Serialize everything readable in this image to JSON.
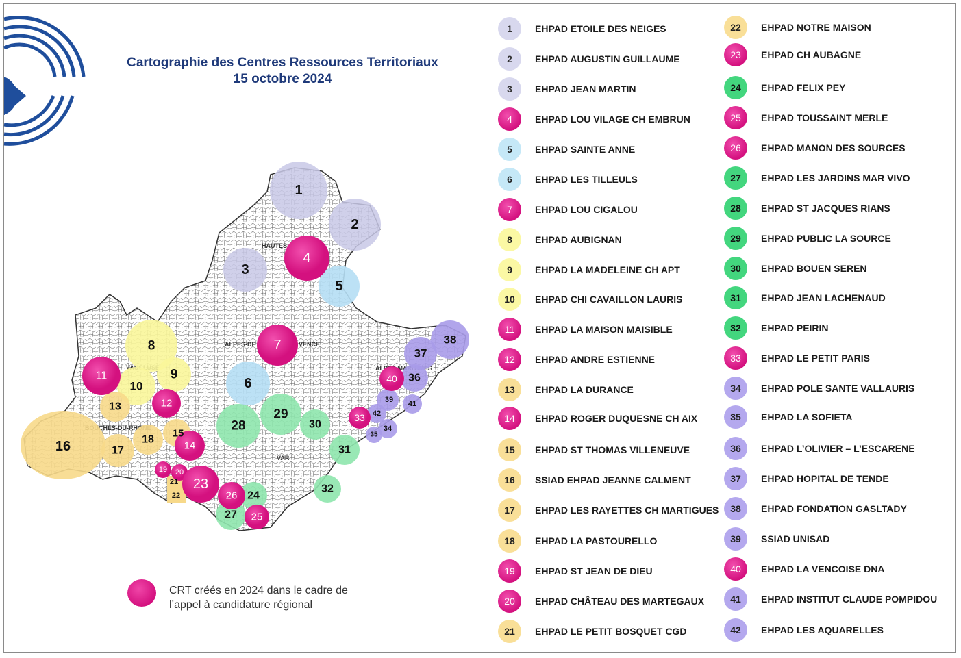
{
  "title": {
    "line1": "Cartographie des Centres Ressources Territoriaux",
    "line2": "15 octobre 2024"
  },
  "map_labels": {
    "hautes": "HAUTES",
    "alpes_de": "ALPES-DE",
    "vence": "VENCE",
    "vaucluse": "VAUCLUSE",
    "bouches_du_rhone": "BOUCHES-DU-RHONE",
    "var": "VAR",
    "alpes_maritimes": "ALPES MARITIMES"
  },
  "note": {
    "line1": "CRT créés en 2024 dans le cadre de",
    "line2": "l’appel à candidature régional"
  },
  "colors": {
    "lavender": "#d8d8ee",
    "pink": "#d4117f",
    "light_blue": "#c5e8f7",
    "yellow": "#fbf8a4",
    "orange": "#f9df98",
    "green": "#43d67e",
    "purple": "#b4a8ee",
    "title_blue": "#1f3a7a"
  },
  "legend": [
    {
      "num": "1",
      "label": "EHPAD ETOILE DES NEIGES",
      "color": "lavender"
    },
    {
      "num": "2",
      "label": "EHPAD AUGUSTIN GUILLAUME",
      "color": "lavender"
    },
    {
      "num": "3",
      "label": "EHPAD JEAN MARTIN",
      "color": "lavender"
    },
    {
      "num": "4",
      "label": "EHPAD LOU VILAGE CH EMBRUN",
      "color": "pink"
    },
    {
      "num": "5",
      "label": "EHPAD SAINTE ANNE",
      "color": "light_blue"
    },
    {
      "num": "6",
      "label": "EHPAD LES TILLEULS",
      "color": "light_blue"
    },
    {
      "num": "7",
      "label": "EHPAD LOU CIGALOU",
      "color": "pink"
    },
    {
      "num": "8",
      "label": "EHPAD AUBIGNAN",
      "color": "yellow"
    },
    {
      "num": "9",
      "label": "EHPAD LA MADELEINE CH APT",
      "color": "yellow"
    },
    {
      "num": "10",
      "label": "EHPAD CHI CAVAILLON LAURIS",
      "color": "yellow"
    },
    {
      "num": "11",
      "label": "EHPAD LA MAISON MAISIBLE",
      "color": "pink"
    },
    {
      "num": "12",
      "label": "EHPAD ANDRE ESTIENNE",
      "color": "pink"
    },
    {
      "num": "13",
      "label": "EHPAD LA DURANCE",
      "color": "orange"
    },
    {
      "num": "14",
      "label": "EHPAD ROGER DUQUESNE CH AIX",
      "color": "pink"
    },
    {
      "num": "15",
      "label": "EHPAD ST THOMAS VILLENEUVE",
      "color": "orange"
    },
    {
      "num": "16",
      "label": "SSIAD EHPAD JEANNE CALMENT",
      "color": "orange"
    },
    {
      "num": "17",
      "label": "EHPAD LES RAYETTES CH MARTIGUES",
      "color": "orange"
    },
    {
      "num": "18",
      "label": "EHPAD LA PASTOURELLO",
      "color": "orange"
    },
    {
      "num": "19",
      "label": "EHPAD ST JEAN DE DIEU",
      "color": "pink"
    },
    {
      "num": "20",
      "label": "EHPAD CHÂTEAU DES MARTEGAUX",
      "color": "pink"
    },
    {
      "num": "21",
      "label": "EHPAD LE PETIT BOSQUET CGD",
      "color": "orange"
    },
    {
      "num": "22",
      "label": "EHPAD NOTRE MAISON",
      "color": "orange"
    },
    {
      "num": "23",
      "label": "EHPAD CH AUBAGNE",
      "color": "pink"
    },
    {
      "num": "24",
      "label": "EHPAD FELIX PEY",
      "color": "green"
    },
    {
      "num": "25",
      "label": "EHPAD TOUSSAINT MERLE",
      "color": "pink"
    },
    {
      "num": "26",
      "label": "EHPAD MANON DES SOURCES",
      "color": "pink"
    },
    {
      "num": "27",
      "label": "EHPAD LES JARDINS MAR VIVO",
      "color": "green"
    },
    {
      "num": "28",
      "label": "EHPAD ST JACQUES RIANS",
      "color": "green"
    },
    {
      "num": "29",
      "label": "EHPAD PUBLIC LA SOURCE",
      "color": "green"
    },
    {
      "num": "30",
      "label": "EHPAD BOUEN SEREN",
      "color": "green"
    },
    {
      "num": "31",
      "label": "EHPAD JEAN LACHENAUD",
      "color": "green"
    },
    {
      "num": "32",
      "label": "EHPAD PEIRIN",
      "color": "green"
    },
    {
      "num": "33",
      "label": "EHPAD LE PETIT PARIS",
      "color": "pink"
    },
    {
      "num": "34",
      "label": "EHPAD POLE SANTE VALLAURIS",
      "color": "purple"
    },
    {
      "num": "35",
      "label": "EHPAD LA SOFIETA",
      "color": "purple"
    },
    {
      "num": "36",
      "label": "EHPAD L’OLIVIER – L’ESCARENE",
      "color": "purple"
    },
    {
      "num": "37",
      "label": "EHPAD HOPITAL DE TENDE",
      "color": "purple"
    },
    {
      "num": "38",
      "label": "EHPAD FONDATION GASLTADY",
      "color": "purple"
    },
    {
      "num": "39",
      "label": "SSIAD UNISAD",
      "color": "purple"
    },
    {
      "num": "40",
      "label": "EHPAD LA VENCOISE DNA",
      "color": "pink"
    },
    {
      "num": "41",
      "label": "EHPAD INSTITUT CLAUDE POMPIDOU",
      "color": "purple"
    },
    {
      "num": "42",
      "label": "EHPAD LES AQUARELLES",
      "color": "purple"
    }
  ]
}
